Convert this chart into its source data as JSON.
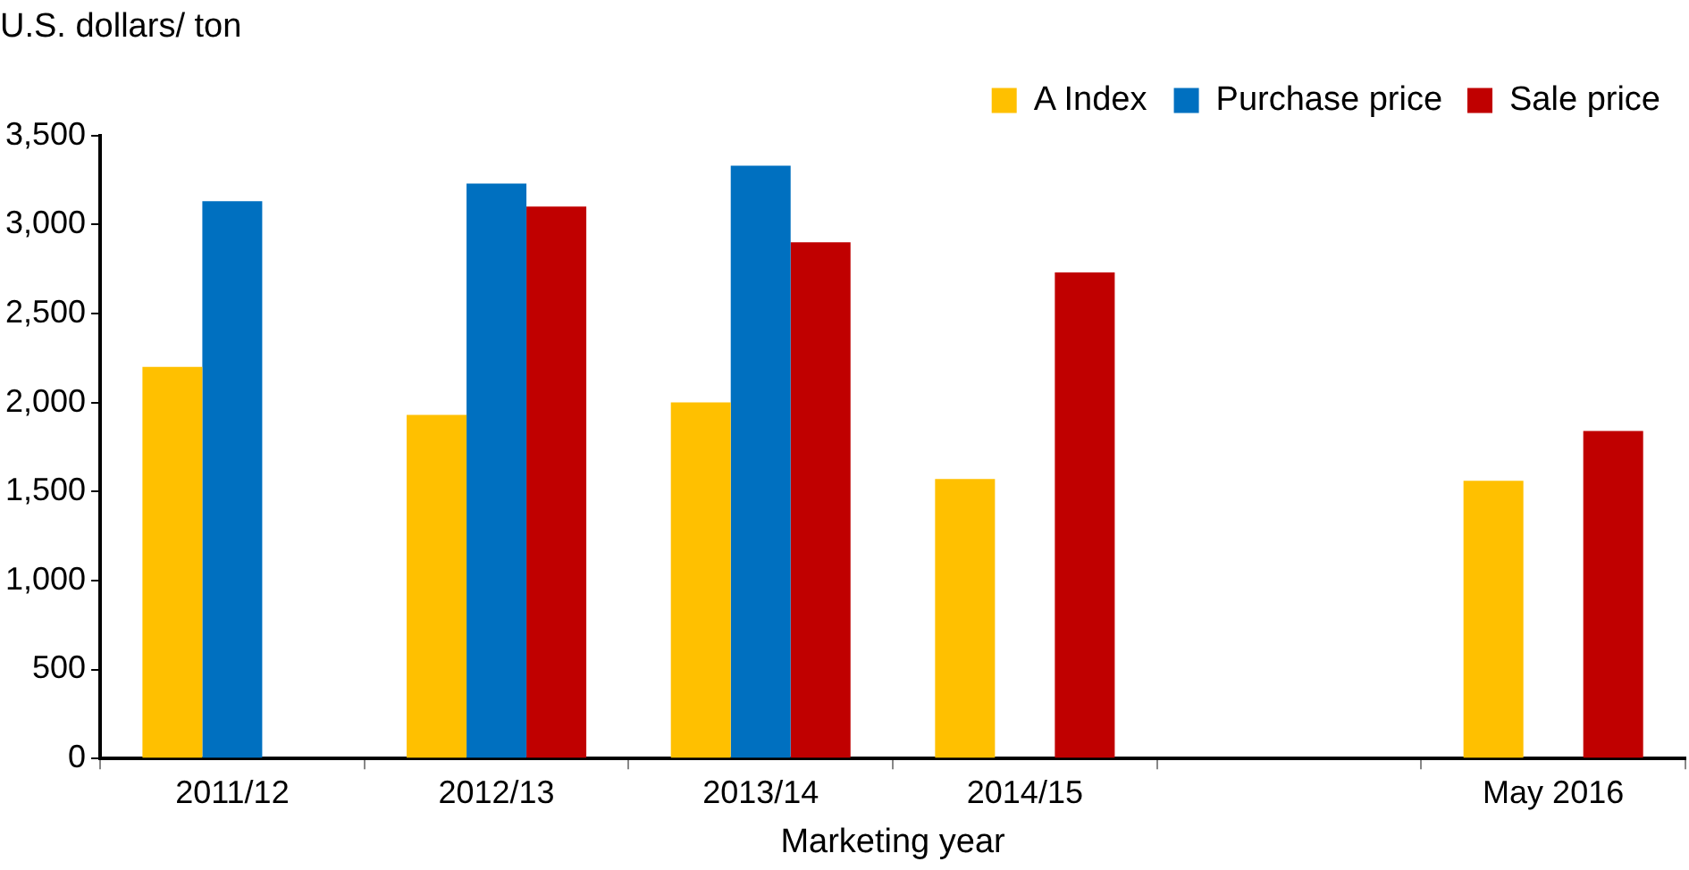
{
  "chart_data": {
    "type": "bar",
    "ylabel": "U.S. dollars/ ton",
    "xlabel": "Marketing year",
    "categories": [
      "2011/12",
      "2012/13",
      "2013/14",
      "2014/15",
      null,
      "May 2016"
    ],
    "series": [
      {
        "name": "A Index",
        "color": "#ffc000",
        "values": [
          2200,
          1930,
          2000,
          1570,
          null,
          1560
        ]
      },
      {
        "name": "Purchase price",
        "color": "#0070c0",
        "values": [
          3130,
          3230,
          3330,
          null,
          null,
          null
        ]
      },
      {
        "name": "Sale price",
        "color": "#c00000",
        "values": [
          null,
          3100,
          2900,
          2730,
          null,
          1840
        ]
      }
    ],
    "ylim": [
      0,
      3500
    ],
    "yticks": [
      0,
      500,
      {
        "value": 1000,
        "label": "1,000"
      },
      {
        "value": 1500,
        "label": "1,500"
      },
      {
        "value": 2000,
        "label": "2,000"
      },
      {
        "value": 2500,
        "label": "2,500"
      },
      {
        "value": 3000,
        "label": "3,000"
      },
      {
        "value": 3500,
        "label": "3,500"
      }
    ],
    "grid": false,
    "legend": "top right"
  }
}
